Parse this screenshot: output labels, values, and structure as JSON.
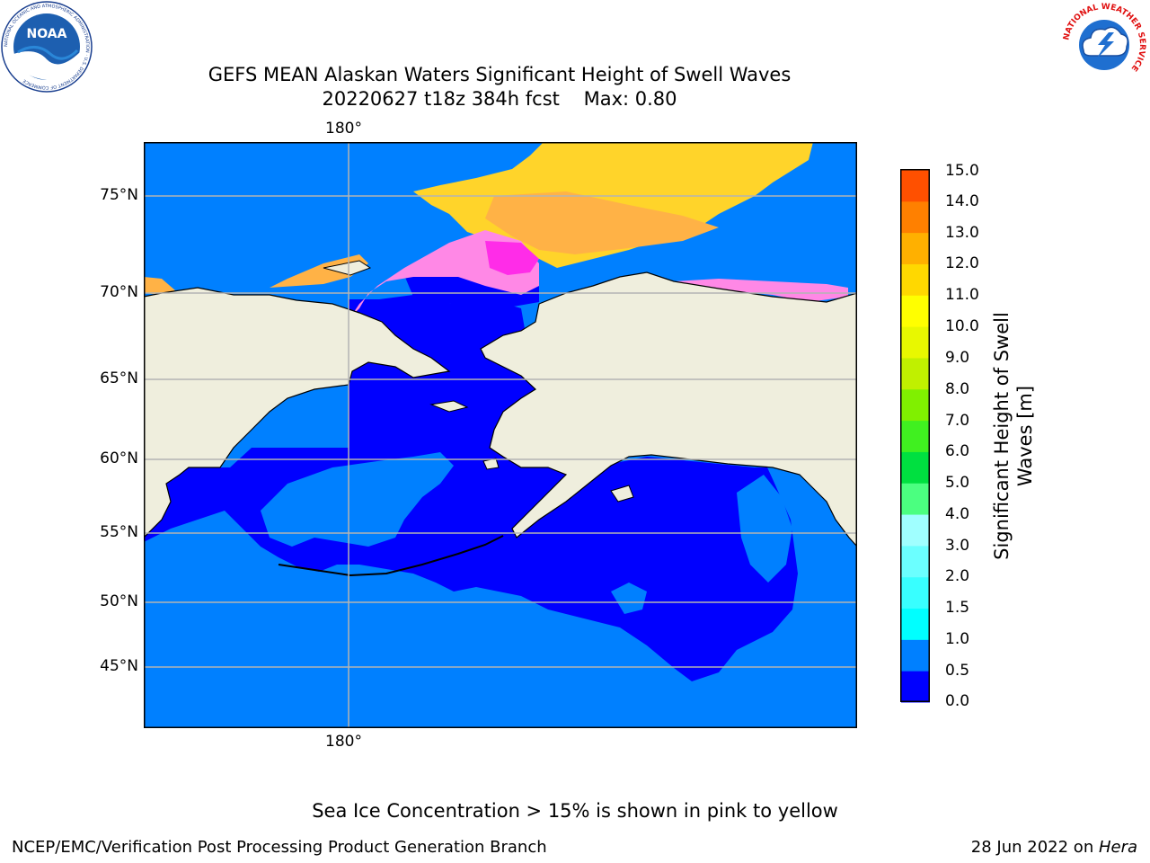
{
  "header": {
    "title_line1": "GEFS MEAN Alaskan Waters Significant Height of Swell Waves",
    "title_line2": "20220627 t18z 384h fcst    Max: 0.80"
  },
  "logos": {
    "left": "noaa-logo",
    "left_text": "NOAA",
    "left_ring_text": "NATIONAL OCEANIC AND ATMOSPHERIC ADMINISTRATION · U.S. DEPARTMENT OF COMMERCE",
    "right": "nws-logo",
    "right_ring_text": "NATIONAL WEATHER SERVICE"
  },
  "map": {
    "lon_label_top": "180°",
    "lon_label_bottom": "180°",
    "lat_labels": [
      "75°N",
      "70°N",
      "65°N",
      "60°N",
      "55°N",
      "50°N",
      "45°N"
    ],
    "colors": {
      "land": "#efeedd",
      "water_low": "#0000ff",
      "water_mid": "#0080ff",
      "ice_pink": "#ff88e6",
      "ice_magenta": "#ff2ce8",
      "ice_orange": "#ffb246",
      "ice_yellow": "#ffd42a",
      "grid": "#b4b4b4",
      "coast": "#000000"
    }
  },
  "colorbar": {
    "label": "Significant Height of Swell Waves [m]",
    "label_line1": "Significant Height of Swell",
    "label_line2": "Waves [m]",
    "tick_labels": [
      "0.0",
      "0.5",
      "1.0",
      "1.5",
      "2.0",
      "3.0",
      "4.0",
      "5.0",
      "6.0",
      "7.0",
      "8.0",
      "9.0",
      "10.0",
      "11.0",
      "12.0",
      "13.0",
      "14.0",
      "15.0"
    ],
    "colors": [
      "#0000ff",
      "#0080ff",
      "#00ffff",
      "#38ffff",
      "#6bffff",
      "#a0ffff",
      "#4bff80",
      "#00e040",
      "#40f020",
      "#80f000",
      "#c0f000",
      "#e8f800",
      "#ffff00",
      "#ffd800",
      "#ffb000",
      "#ff8000",
      "#ff5000",
      "#ff2000",
      "#ff0000"
    ]
  },
  "chart_data": {
    "type": "heatmap",
    "title": "GEFS MEAN Alaskan Waters Significant Height of Swell Waves",
    "subtitle": "20220627 t18z 384h fcst    Max: 0.80",
    "levels": [
      0.0,
      0.5,
      1.0,
      1.5,
      2.0,
      3.0,
      4.0,
      5.0,
      6.0,
      7.0,
      8.0,
      9.0,
      10.0,
      11.0,
      12.0,
      13.0,
      14.0,
      15.0
    ],
    "max_value": 0.8,
    "units": "m"
  },
  "footer": {
    "note": "Sea Ice Concentration > 15% is shown in pink to yellow",
    "left": "NCEP/EMC/Verification Post Processing Product Generation Branch",
    "right_date": "28 Jun 2022 on ",
    "right_host": "Hera"
  }
}
